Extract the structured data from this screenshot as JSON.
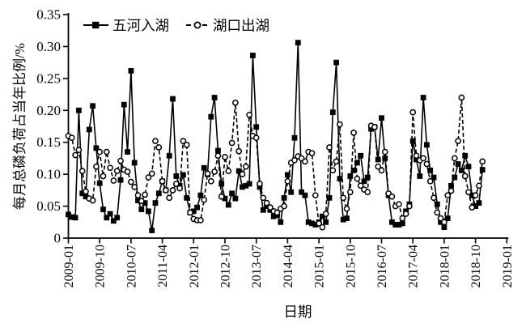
{
  "chart_data": {
    "type": "line",
    "title": "",
    "xlabel": "日期",
    "ylabel": "每月总磷负荷占当年比例/%",
    "x_start_month": "2009-01",
    "x_end_month": "2018-12",
    "ylim": [
      0,
      0.35
    ],
    "y_ticks": [
      0,
      0.05,
      0.1,
      0.15,
      0.2,
      0.25,
      0.3,
      0.35
    ],
    "y_tick_labels": [
      "0",
      "0.05",
      "0.10",
      "0.15",
      "0.20",
      "0.25",
      "0.30",
      "0.35"
    ],
    "x_tick_labels": [
      "2009-01",
      "2009-10",
      "2010-07",
      "2011-04",
      "2012-01",
      "2012-10",
      "2013-07",
      "2014-04",
      "2015-01",
      "2015-10",
      "2016-07",
      "2017-04",
      "2018-01",
      "2018-10",
      "2019-01"
    ],
    "x_tick_interval_months": 9,
    "grid": false,
    "legend_position": "top-left-inside",
    "series": [
      {
        "name": "五河入湖",
        "line": "solid",
        "marker": "filled-square",
        "values": [
          0.037,
          0.033,
          0.032,
          0.2,
          0.07,
          0.065,
          0.17,
          0.207,
          0.141,
          0.086,
          0.045,
          0.032,
          0.038,
          0.027,
          0.032,
          0.091,
          0.209,
          0.135,
          0.262,
          0.118,
          0.059,
          0.045,
          0.055,
          0.042,
          0.012,
          0.055,
          0.07,
          0.089,
          0.075,
          0.129,
          0.218,
          0.097,
          0.082,
          0.099,
          0.063,
          0.04,
          0.042,
          0.048,
          0.067,
          0.11,
          0.1,
          0.19,
          0.22,
          0.137,
          0.085,
          0.062,
          0.052,
          0.07,
          0.062,
          0.105,
          0.08,
          0.082,
          0.085,
          0.286,
          0.174,
          0.08,
          0.044,
          0.05,
          0.044,
          0.034,
          0.036,
          0.025,
          0.063,
          0.099,
          0.072,
          0.157,
          0.306,
          0.072,
          0.067,
          0.025,
          0.023,
          0.021,
          0.025,
          0.034,
          0.025,
          0.063,
          0.197,
          0.275,
          0.093,
          0.029,
          0.031,
          0.097,
          0.106,
          0.118,
          0.129,
          0.089,
          0.095,
          0.171,
          0.174,
          0.123,
          0.188,
          0.125,
          0.067,
          0.025,
          0.021,
          0.021,
          0.023,
          0.042,
          0.053,
          0.152,
          0.123,
          0.097,
          0.22,
          0.146,
          0.106,
          0.095,
          0.053,
          0.025,
          0.017,
          0.031,
          0.082,
          0.095,
          0.116,
          0.106,
          0.129,
          0.112,
          0.067,
          0.05,
          0.055,
          0.107
        ]
      },
      {
        "name": "湖口出湖",
        "line": "dashed",
        "marker": "open-circle",
        "values": [
          0.16,
          0.157,
          0.13,
          0.138,
          0.105,
          0.073,
          0.062,
          0.059,
          0.112,
          0.135,
          0.097,
          0.135,
          0.11,
          0.09,
          0.105,
          0.121,
          0.107,
          0.104,
          0.088,
          0.08,
          0.067,
          0.058,
          0.068,
          0.095,
          0.101,
          0.152,
          0.142,
          0.089,
          0.075,
          0.063,
          0.075,
          0.085,
          0.078,
          0.152,
          0.146,
          0.04,
          0.03,
          0.028,
          0.028,
          0.06,
          0.101,
          0.089,
          0.104,
          0.129,
          0.065,
          0.127,
          0.105,
          0.149,
          0.212,
          0.136,
          0.1,
          0.112,
          0.193,
          0.16,
          0.157,
          0.085,
          0.063,
          0.055,
          0.048,
          0.042,
          0.04,
          0.046,
          0.05,
          0.089,
          0.118,
          0.122,
          0.128,
          0.125,
          0.12,
          0.135,
          0.133,
          0.067,
          0.023,
          0.017,
          0.038,
          0.142,
          0.106,
          0.12,
          0.178,
          0.063,
          0.046,
          0.072,
          0.165,
          0.093,
          0.082,
          0.076,
          0.072,
          0.176,
          0.174,
          0.112,
          0.106,
          0.135,
          0.07,
          0.065,
          0.05,
          0.053,
          0.031,
          0.038,
          0.05,
          0.197,
          0.129,
          0.122,
          0.125,
          0.116,
          0.089,
          0.063,
          0.04,
          0.031,
          0.025,
          0.067,
          0.074,
          0.125,
          0.152,
          0.22,
          0.097,
          0.072,
          0.048,
          0.067,
          0.082,
          0.12
        ]
      }
    ]
  },
  "colors": {
    "foreground": "#000000",
    "background": "#ffffff"
  }
}
